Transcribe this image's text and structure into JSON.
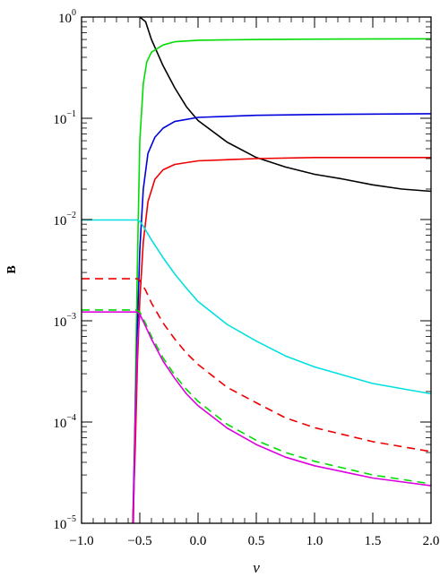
{
  "chart_data": {
    "type": "line",
    "xlabel": "ν",
    "ylabel": "B",
    "xlim": [
      -1.0,
      2.0
    ],
    "ylim": [
      1e-05,
      1
    ],
    "yscale": "log",
    "grid": false,
    "x_ticks": [
      {
        "value": -1.0,
        "label": "−1.0"
      },
      {
        "value": -0.5,
        "label": "−0.5"
      },
      {
        "value": 0.0,
        "label": "0.0"
      },
      {
        "value": 0.5,
        "label": "0.5"
      },
      {
        "value": 1.0,
        "label": "1.0"
      },
      {
        "value": 1.5,
        "label": "1.5"
      },
      {
        "value": 2.0,
        "label": "2.0"
      }
    ],
    "y_ticks": [
      {
        "value": 1,
        "base": "10",
        "exp": "0"
      },
      {
        "value": 0.1,
        "base": "10",
        "exp": "−1"
      },
      {
        "value": 0.01,
        "base": "10",
        "exp": "−2"
      },
      {
        "value": 0.001,
        "base": "10",
        "exp": "−3"
      },
      {
        "value": 0.0001,
        "base": "10",
        "exp": "−4"
      },
      {
        "value": 1e-05,
        "base": "10",
        "exp": "−5"
      }
    ],
    "series": [
      {
        "color": "#000000",
        "dash": false,
        "points": [
          [
            -0.5,
            1.0
          ],
          [
            -0.45,
            0.9
          ],
          [
            -0.4,
            0.6
          ],
          [
            -0.3,
            0.33
          ],
          [
            -0.2,
            0.2
          ],
          [
            -0.1,
            0.13
          ],
          [
            0.0,
            0.095
          ],
          [
            0.25,
            0.058
          ],
          [
            0.5,
            0.041
          ],
          [
            0.75,
            0.033
          ],
          [
            1.0,
            0.028
          ],
          [
            1.25,
            0.025
          ],
          [
            1.5,
            0.022
          ],
          [
            1.75,
            0.02
          ],
          [
            2.0,
            0.019
          ]
        ]
      },
      {
        "color": "#00dd00",
        "dash": false,
        "points": [
          [
            -0.555,
            1e-05
          ],
          [
            -0.54,
            0.00015
          ],
          [
            -0.52,
            0.004
          ],
          [
            -0.5,
            0.06
          ],
          [
            -0.47,
            0.22
          ],
          [
            -0.44,
            0.36
          ],
          [
            -0.4,
            0.45
          ],
          [
            -0.3,
            0.53
          ],
          [
            -0.2,
            0.57
          ],
          [
            0.0,
            0.59
          ],
          [
            0.5,
            0.6
          ],
          [
            1.0,
            0.605
          ],
          [
            2.0,
            0.61
          ]
        ]
      },
      {
        "color": "#0000dd",
        "dash": false,
        "points": [
          [
            -0.56,
            1e-05
          ],
          [
            -0.54,
            0.0001
          ],
          [
            -0.52,
            0.0009
          ],
          [
            -0.5,
            0.005
          ],
          [
            -0.47,
            0.02
          ],
          [
            -0.43,
            0.045
          ],
          [
            -0.37,
            0.065
          ],
          [
            -0.3,
            0.08
          ],
          [
            -0.2,
            0.093
          ],
          [
            0.0,
            0.102
          ],
          [
            0.5,
            0.107
          ],
          [
            1.0,
            0.109
          ],
          [
            2.0,
            0.111
          ]
        ]
      },
      {
        "color": "#ee0000",
        "dash": false,
        "points": [
          [
            -0.56,
            1e-05
          ],
          [
            -0.54,
            5e-05
          ],
          [
            -0.52,
            0.0004
          ],
          [
            -0.5,
            0.0016
          ],
          [
            -0.47,
            0.006
          ],
          [
            -0.43,
            0.015
          ],
          [
            -0.37,
            0.025
          ],
          [
            -0.3,
            0.031
          ],
          [
            -0.2,
            0.035
          ],
          [
            0.0,
            0.038
          ],
          [
            0.5,
            0.04
          ],
          [
            1.0,
            0.041
          ],
          [
            2.0,
            0.041
          ]
        ]
      },
      {
        "color": "#00e0e0",
        "dash": false,
        "points": [
          [
            -1.0,
            0.0099
          ],
          [
            -0.52,
            0.0099
          ],
          [
            -0.5,
            0.0096
          ],
          [
            -0.47,
            0.0086
          ],
          [
            -0.4,
            0.0063
          ],
          [
            -0.3,
            0.0042
          ],
          [
            -0.2,
            0.0029
          ],
          [
            -0.1,
            0.0021
          ],
          [
            0.0,
            0.00155
          ],
          [
            0.25,
            0.00092
          ],
          [
            0.5,
            0.00063
          ],
          [
            0.75,
            0.00045
          ],
          [
            1.0,
            0.00035
          ],
          [
            1.5,
            0.00024
          ],
          [
            2.0,
            0.00019
          ]
        ]
      },
      {
        "color": "#ee0000",
        "dash": true,
        "points": [
          [
            -1.0,
            0.0026
          ],
          [
            -0.52,
            0.0026
          ],
          [
            -0.5,
            0.0025
          ],
          [
            -0.45,
            0.002
          ],
          [
            -0.4,
            0.0015
          ],
          [
            -0.3,
            0.00095
          ],
          [
            -0.2,
            0.00066
          ],
          [
            -0.1,
            0.00048
          ],
          [
            0.0,
            0.00037
          ],
          [
            0.25,
            0.00022
          ],
          [
            0.5,
            0.000155
          ],
          [
            0.75,
            0.00011
          ],
          [
            1.0,
            8.8e-05
          ],
          [
            1.5,
            6.4e-05
          ],
          [
            2.0,
            5.1e-05
          ]
        ]
      },
      {
        "color": "#00dd00",
        "dash": true,
        "points": [
          [
            -1.0,
            0.00128
          ],
          [
            -0.53,
            0.00128
          ],
          [
            -0.5,
            0.00122
          ],
          [
            -0.45,
            0.00094
          ],
          [
            -0.4,
            0.0007
          ],
          [
            -0.3,
            0.00043
          ],
          [
            -0.2,
            0.00029
          ],
          [
            -0.1,
            0.00021
          ],
          [
            0.0,
            0.00016
          ],
          [
            0.25,
            9.5e-05
          ],
          [
            0.5,
            6.6e-05
          ],
          [
            0.75,
            5e-05
          ],
          [
            1.0,
            4.1e-05
          ],
          [
            1.5,
            3e-05
          ],
          [
            2.0,
            2.45e-05
          ]
        ]
      },
      {
        "color": "#dd00dd",
        "dash": false,
        "points": [
          [
            -1.0,
            0.00122
          ],
          [
            -0.53,
            0.00122
          ],
          [
            -0.5,
            0.00116
          ],
          [
            -0.45,
            0.00088
          ],
          [
            -0.4,
            0.00066
          ],
          [
            -0.3,
            0.0004
          ],
          [
            -0.2,
            0.00027
          ],
          [
            -0.1,
            0.00019
          ],
          [
            0.0,
            0.000145
          ],
          [
            0.25,
            8.7e-05
          ],
          [
            0.5,
            6e-05
          ],
          [
            0.75,
            4.5e-05
          ],
          [
            1.0,
            3.7e-05
          ],
          [
            1.5,
            2.8e-05
          ],
          [
            2.0,
            2.35e-05
          ]
        ]
      },
      {
        "color": "#dd00dd",
        "dash": false,
        "points": [
          [
            -0.555,
            1e-05
          ],
          [
            -0.54,
            0.0001
          ],
          [
            -0.52,
            0.0006
          ],
          [
            -0.5,
            0.00116
          ]
        ]
      }
    ]
  }
}
